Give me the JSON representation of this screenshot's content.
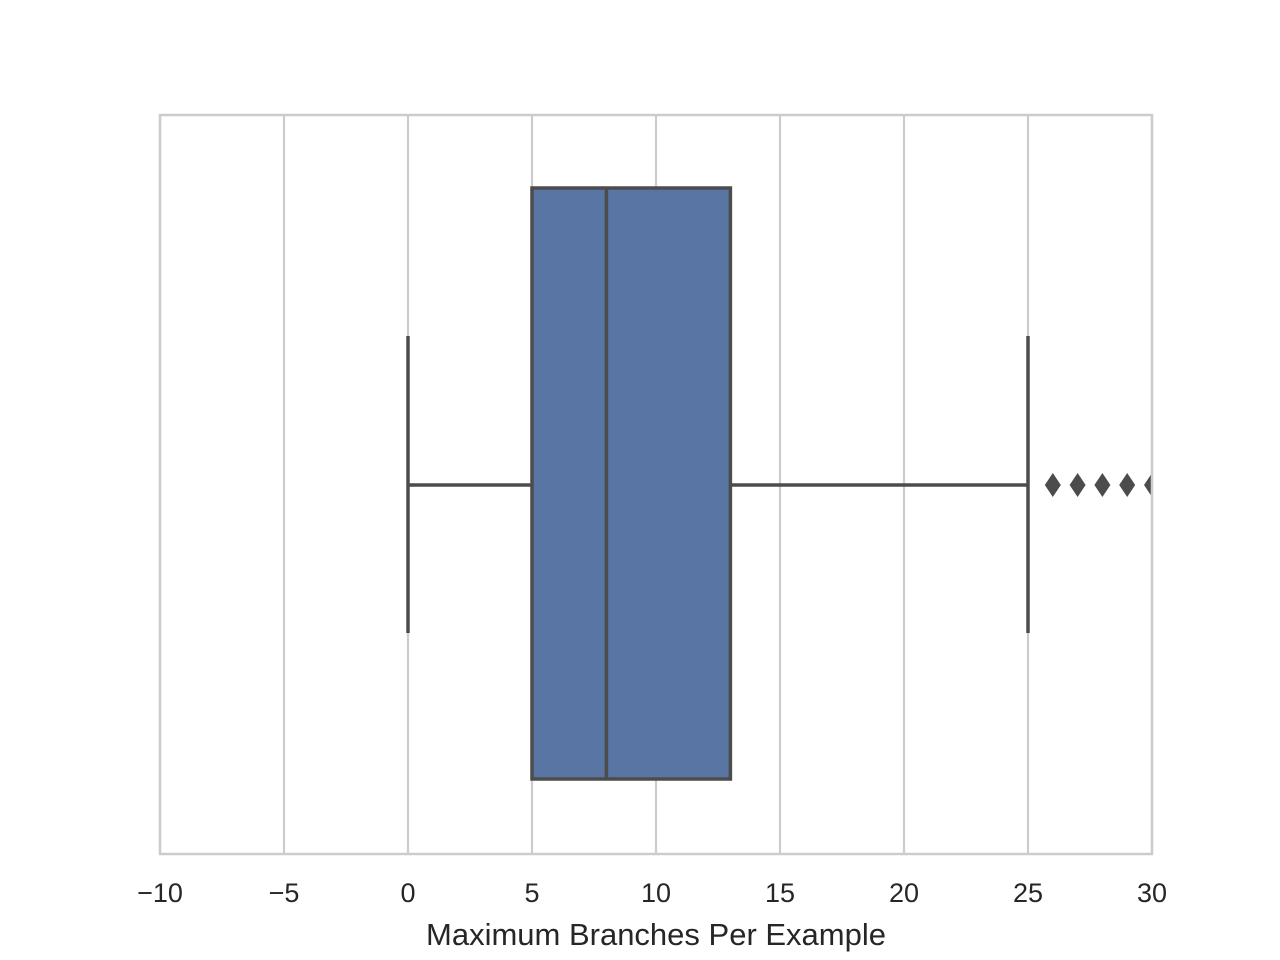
{
  "chart_data": {
    "type": "box",
    "orientation": "horizontal",
    "title": "",
    "xlabel": "Maximum Branches Per Example",
    "ylabel": "",
    "xlim": [
      -10,
      30
    ],
    "xticks": [
      -10,
      -5,
      0,
      5,
      10,
      15,
      20,
      25,
      30
    ],
    "xtick_labels": [
      "−10",
      "−5",
      "0",
      "5",
      "10",
      "15",
      "20",
      "25",
      "30"
    ],
    "grid": "vertical",
    "box": {
      "whisker_low": 0,
      "q1": 5,
      "median": 8,
      "q3": 13,
      "whisker_high": 25
    },
    "outliers": [
      26,
      27,
      28,
      29,
      30
    ],
    "colors": {
      "box_fill": "#5975a4",
      "line": "#4c4c4c",
      "grid": "#cccccc",
      "frame": "#cccccc"
    }
  }
}
